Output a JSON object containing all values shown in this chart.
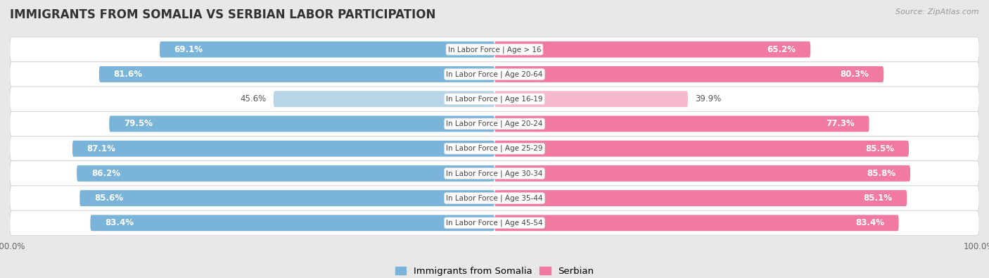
{
  "title": "IMMIGRANTS FROM SOMALIA VS SERBIAN LABOR PARTICIPATION",
  "source": "Source: ZipAtlas.com",
  "categories": [
    "In Labor Force | Age > 16",
    "In Labor Force | Age 20-64",
    "In Labor Force | Age 16-19",
    "In Labor Force | Age 20-24",
    "In Labor Force | Age 25-29",
    "In Labor Force | Age 30-34",
    "In Labor Force | Age 35-44",
    "In Labor Force | Age 45-54"
  ],
  "somalia_values": [
    69.1,
    81.6,
    45.6,
    79.5,
    87.1,
    86.2,
    85.6,
    83.4
  ],
  "serbian_values": [
    65.2,
    80.3,
    39.9,
    77.3,
    85.5,
    85.8,
    85.1,
    83.4
  ],
  "somalia_color": "#7ab4d8",
  "somalia_light_color": "#b8d5e8",
  "serbian_color": "#f07aa0",
  "serbian_light_color": "#f5b8cc",
  "bg_color": "#e8e8e8",
  "row_bg_color": "#f5f5f5",
  "max_value": 100.0,
  "bar_height": 0.65,
  "title_fontsize": 12,
  "legend_fontsize": 9.5,
  "value_fontsize": 8.5,
  "cat_fontsize": 7.5
}
